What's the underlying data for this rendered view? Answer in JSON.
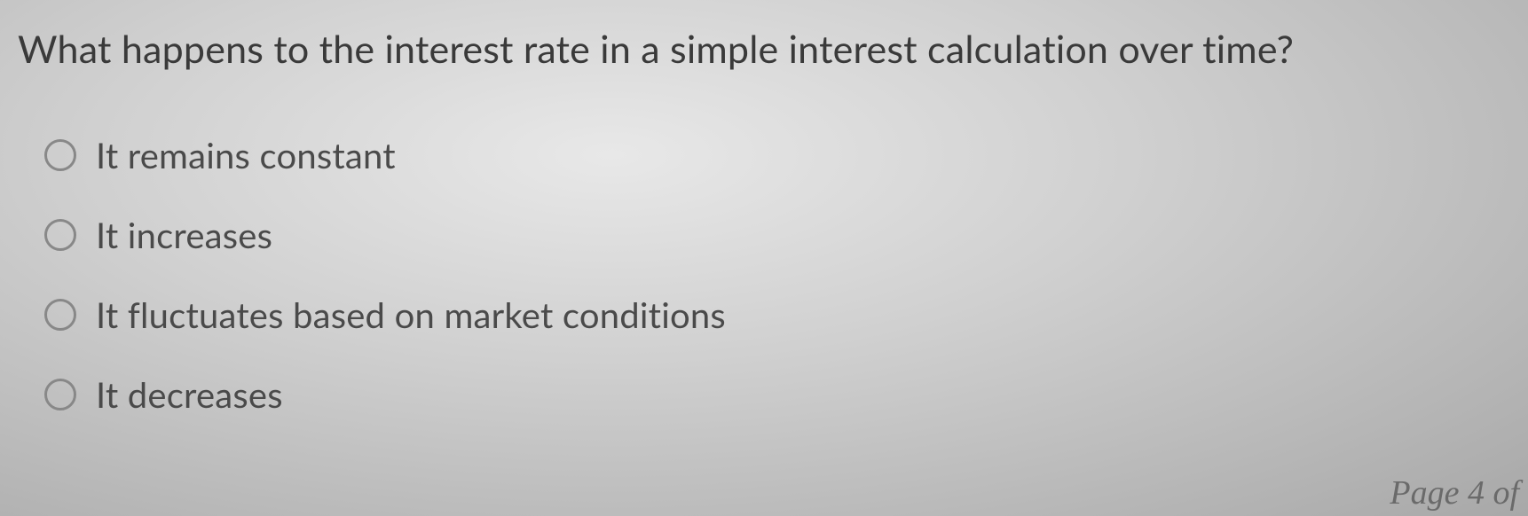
{
  "question": {
    "text": "What happens to the interest rate in a simple interest calculation over time?"
  },
  "options": [
    {
      "label": "It remains constant"
    },
    {
      "label": "It increases"
    },
    {
      "label": "It fluctuates based on market conditions"
    },
    {
      "label": "It decreases"
    }
  ],
  "page_indicator": "Page 4 of",
  "colors": {
    "text": "#3a3a3a",
    "option_text": "#4a4a4a",
    "radio_border": "#888888"
  }
}
